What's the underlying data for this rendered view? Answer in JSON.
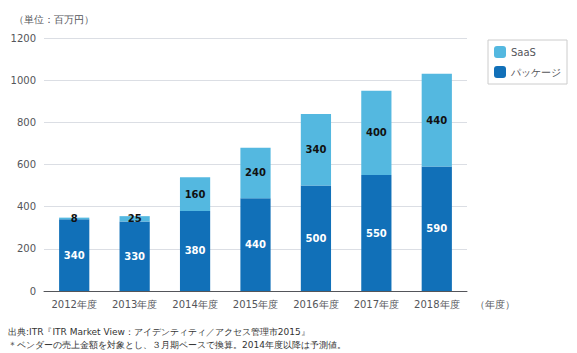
{
  "chart_data": {
    "type": "bar",
    "stacked": true,
    "categories": [
      "2012年度",
      "2013年度",
      "2014年度",
      "2015年度",
      "2016年度",
      "2017年度",
      "2018年度"
    ],
    "series": [
      {
        "name": "パッケージ",
        "color": "#1170b8",
        "values": [
          340,
          330,
          380,
          440,
          500,
          550,
          590
        ]
      },
      {
        "name": "SaaS",
        "color": "#54b8e0",
        "values": [
          8,
          25,
          160,
          240,
          340,
          400,
          440
        ]
      }
    ],
    "xlabel": "（年度）",
    "ylabel": "（単位：百万円）",
    "annotations": [
      "出典:ITR『ITR Market View：アイデンティティ／アクセス管理市2015』",
      "＊ベンダーの売上金額を対象とし、３月期ベースで換算。2014年度以降は予測値。"
    ],
    "ylim": [
      0,
      1200
    ],
    "yticks": [
      0,
      200,
      400,
      600,
      800,
      1000,
      1200
    ],
    "grid": true,
    "data_labels": true,
    "legend": "right"
  }
}
